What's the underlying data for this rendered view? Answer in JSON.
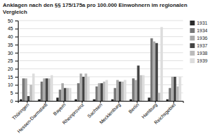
{
  "chart_data": {
    "type": "bar",
    "title": "Anklagen nach den §§ 175/175a pro 100.000 Einwohnern im regionalen Vergleich",
    "categories": [
      "Thüringen",
      "Hessen-Darmstadt",
      "Bayern",
      "Rheinprovinz",
      "Sachsen",
      "Mecklenburg",
      "Berlin",
      "Hamburg",
      "Reichsgebiet"
    ],
    "series": [
      {
        "name": "1931",
        "color": "#2a2a2a",
        "values": [
          1,
          1,
          2,
          1,
          1,
          1,
          1,
          2,
          1
        ]
      },
      {
        "name": "1934",
        "color": "#777777",
        "values": [
          14,
          12,
          7,
          11,
          9,
          8,
          14,
          39,
          8
        ]
      },
      {
        "name": "1936",
        "color": "#aaaaaa",
        "values": [
          14,
          14,
          11,
          17,
          11,
          13,
          13,
          37,
          15
        ]
      },
      {
        "name": "1937",
        "color": "#444444",
        "values": [
          3,
          14,
          8,
          15,
          11,
          12,
          22,
          36,
          15
        ]
      },
      {
        "name": "1938",
        "color": "#bbbbbb",
        "values": [
          10,
          14,
          8,
          17,
          12,
          12,
          16,
          5,
          9
        ]
      },
      {
        "name": "1939",
        "color": "#dddddd",
        "values": [
          17,
          16,
          8,
          15,
          13,
          13,
          16,
          46,
          15
        ]
      }
    ],
    "ylim": [
      0,
      50
    ],
    "yticks": [
      0,
      5,
      10,
      15,
      20,
      25,
      30,
      35,
      40,
      45,
      50
    ],
    "grid": true,
    "legend": "right"
  }
}
